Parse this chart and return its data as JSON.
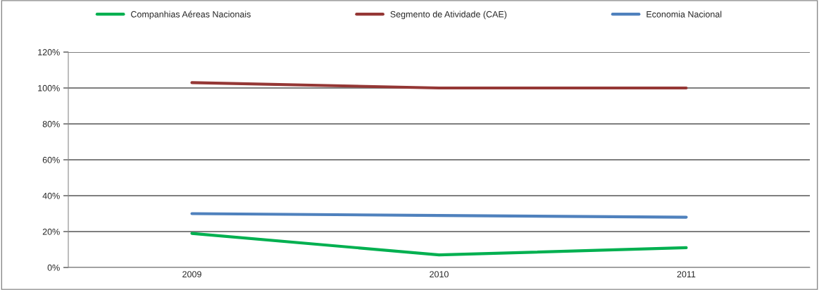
{
  "chart_data": {
    "type": "line",
    "categories": [
      "2009",
      "2010",
      "2011"
    ],
    "series": [
      {
        "name": "Companhias Aéreas Nacionais",
        "color": "#00b050",
        "values": [
          19,
          7,
          11
        ]
      },
      {
        "name": "Segmento de Atividade (CAE)",
        "color": "#953735",
        "values": [
          103,
          100,
          100
        ]
      },
      {
        "name": "Economia Nacional",
        "color": "#4f81bd",
        "values": [
          30,
          29,
          28
        ]
      }
    ],
    "ylim": [
      0,
      120
    ],
    "yticks": [
      {
        "value": 0,
        "label": "0%"
      },
      {
        "value": 20,
        "label": "20%"
      },
      {
        "value": 40,
        "label": "40%"
      },
      {
        "value": 60,
        "label": "60%"
      },
      {
        "value": 80,
        "label": "80%"
      },
      {
        "value": 100,
        "label": "100%"
      },
      {
        "value": 120,
        "label": "120%"
      }
    ],
    "grid": "y",
    "legend": "top",
    "marker": "none",
    "line_style": "solid"
  }
}
